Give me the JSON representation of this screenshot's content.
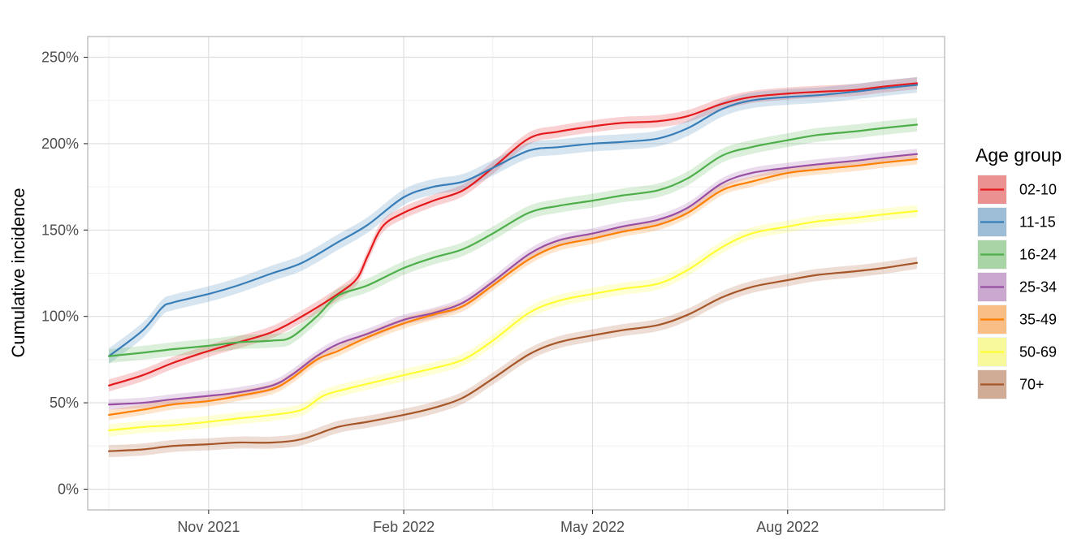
{
  "chart_data": {
    "type": "line",
    "title": "",
    "xlabel": "",
    "ylabel": "Cumulative incidence",
    "x_tick_labels": [
      "Nov 2021",
      "Feb 2022",
      "May 2022",
      "Aug 2022"
    ],
    "x_ticks": [
      "2021-11-01",
      "2022-02-01",
      "2022-05-01",
      "2022-08-01"
    ],
    "x_minor_ticks": [
      "2021-09-15",
      "2021-12-15",
      "2022-03-15",
      "2022-06-15",
      "2022-09-15"
    ],
    "xlim": [
      "2021-09-05",
      "2022-10-14"
    ],
    "y_tick_labels": [
      "0%",
      "50%",
      "100%",
      "150%",
      "200%",
      "250%"
    ],
    "y_ticks": [
      0,
      50,
      100,
      150,
      200,
      250
    ],
    "ylim": [
      -12,
      262
    ],
    "y_unit": "%",
    "grid": true,
    "legend": {
      "title": "Age group",
      "position": "right"
    },
    "band": "shaded interval around each line",
    "series": [
      {
        "name": "02-10",
        "color": "#E41A1C",
        "band_halfwidth": 3.5,
        "points": [
          [
            "2021-09-15",
            60
          ],
          [
            "2021-10-01",
            66
          ],
          [
            "2021-10-15",
            73
          ],
          [
            "2021-11-01",
            80
          ],
          [
            "2021-11-15",
            85
          ],
          [
            "2021-12-01",
            91
          ],
          [
            "2021-12-15",
            100
          ],
          [
            "2022-01-01",
            113
          ],
          [
            "2022-01-10",
            122
          ],
          [
            "2022-01-15",
            135
          ],
          [
            "2022-01-22",
            152
          ],
          [
            "2022-02-01",
            160
          ],
          [
            "2022-02-15",
            167
          ],
          [
            "2022-03-01",
            173
          ],
          [
            "2022-03-15",
            186
          ],
          [
            "2022-04-01",
            203
          ],
          [
            "2022-04-15",
            207
          ],
          [
            "2022-05-01",
            210
          ],
          [
            "2022-05-15",
            212
          ],
          [
            "2022-06-01",
            213
          ],
          [
            "2022-06-15",
            216
          ],
          [
            "2022-07-01",
            223
          ],
          [
            "2022-07-15",
            227
          ],
          [
            "2022-08-01",
            229
          ],
          [
            "2022-08-15",
            230
          ],
          [
            "2022-09-01",
            231
          ],
          [
            "2022-09-15",
            233
          ],
          [
            "2022-10-01",
            235
          ]
        ]
      },
      {
        "name": "11-15",
        "color": "#377EB8",
        "band_halfwidth": 4.5,
        "points": [
          [
            "2021-09-15",
            77
          ],
          [
            "2021-10-01",
            92
          ],
          [
            "2021-10-10",
            105
          ],
          [
            "2021-10-15",
            108
          ],
          [
            "2021-11-01",
            113
          ],
          [
            "2021-11-15",
            118
          ],
          [
            "2021-12-01",
            125
          ],
          [
            "2021-12-15",
            131
          ],
          [
            "2022-01-01",
            143
          ],
          [
            "2022-01-15",
            153
          ],
          [
            "2022-02-01",
            169
          ],
          [
            "2022-02-15",
            175
          ],
          [
            "2022-03-01",
            178
          ],
          [
            "2022-03-15",
            186
          ],
          [
            "2022-04-01",
            196
          ],
          [
            "2022-04-15",
            198
          ],
          [
            "2022-05-01",
            200
          ],
          [
            "2022-05-15",
            201
          ],
          [
            "2022-06-01",
            203
          ],
          [
            "2022-06-15",
            209
          ],
          [
            "2022-07-01",
            220
          ],
          [
            "2022-07-15",
            225
          ],
          [
            "2022-08-01",
            227
          ],
          [
            "2022-08-15",
            228
          ],
          [
            "2022-09-01",
            230
          ],
          [
            "2022-09-15",
            232
          ],
          [
            "2022-10-01",
            234
          ]
        ]
      },
      {
        "name": "16-24",
        "color": "#4DAF4A",
        "band_halfwidth": 4,
        "points": [
          [
            "2021-09-15",
            77
          ],
          [
            "2021-10-01",
            79
          ],
          [
            "2021-10-15",
            81
          ],
          [
            "2021-11-01",
            83
          ],
          [
            "2021-11-15",
            85
          ],
          [
            "2021-12-01",
            86
          ],
          [
            "2021-12-10",
            88
          ],
          [
            "2021-12-22",
            100
          ],
          [
            "2022-01-01",
            112
          ],
          [
            "2022-01-15",
            118
          ],
          [
            "2022-02-01",
            128
          ],
          [
            "2022-02-15",
            134
          ],
          [
            "2022-03-01",
            139
          ],
          [
            "2022-03-15",
            148
          ],
          [
            "2022-04-01",
            160
          ],
          [
            "2022-04-15",
            164
          ],
          [
            "2022-05-01",
            167
          ],
          [
            "2022-05-15",
            170
          ],
          [
            "2022-06-01",
            173
          ],
          [
            "2022-06-15",
            180
          ],
          [
            "2022-07-01",
            193
          ],
          [
            "2022-07-15",
            198
          ],
          [
            "2022-08-01",
            202
          ],
          [
            "2022-08-15",
            205
          ],
          [
            "2022-09-01",
            207
          ],
          [
            "2022-09-15",
            209
          ],
          [
            "2022-10-01",
            211
          ]
        ]
      },
      {
        "name": "25-34",
        "color": "#984EA3",
        "band_halfwidth": 3,
        "points": [
          [
            "2021-09-15",
            49
          ],
          [
            "2021-10-01",
            50
          ],
          [
            "2021-10-15",
            52
          ],
          [
            "2021-11-01",
            54
          ],
          [
            "2021-11-15",
            56
          ],
          [
            "2021-12-01",
            60
          ],
          [
            "2021-12-10",
            66
          ],
          [
            "2021-12-22",
            77
          ],
          [
            "2022-01-01",
            84
          ],
          [
            "2022-01-15",
            90
          ],
          [
            "2022-02-01",
            98
          ],
          [
            "2022-02-15",
            102
          ],
          [
            "2022-03-01",
            108
          ],
          [
            "2022-03-15",
            120
          ],
          [
            "2022-04-01",
            136
          ],
          [
            "2022-04-15",
            144
          ],
          [
            "2022-05-01",
            148
          ],
          [
            "2022-05-15",
            152
          ],
          [
            "2022-06-01",
            156
          ],
          [
            "2022-06-15",
            163
          ],
          [
            "2022-07-01",
            177
          ],
          [
            "2022-07-15",
            183
          ],
          [
            "2022-08-01",
            186
          ],
          [
            "2022-08-15",
            188
          ],
          [
            "2022-09-01",
            190
          ],
          [
            "2022-09-15",
            192
          ],
          [
            "2022-10-01",
            194
          ]
        ]
      },
      {
        "name": "35-49",
        "color": "#FF7F00",
        "band_halfwidth": 3,
        "points": [
          [
            "2021-09-15",
            43
          ],
          [
            "2021-10-01",
            46
          ],
          [
            "2021-10-15",
            49
          ],
          [
            "2021-11-01",
            51
          ],
          [
            "2021-11-15",
            54
          ],
          [
            "2021-12-01",
            58
          ],
          [
            "2021-12-10",
            64
          ],
          [
            "2021-12-22",
            75
          ],
          [
            "2022-01-01",
            80
          ],
          [
            "2022-01-15",
            88
          ],
          [
            "2022-02-01",
            96
          ],
          [
            "2022-02-15",
            101
          ],
          [
            "2022-03-01",
            106
          ],
          [
            "2022-03-15",
            118
          ],
          [
            "2022-04-01",
            133
          ],
          [
            "2022-04-15",
            141
          ],
          [
            "2022-05-01",
            145
          ],
          [
            "2022-05-15",
            149
          ],
          [
            "2022-06-01",
            153
          ],
          [
            "2022-06-15",
            160
          ],
          [
            "2022-07-01",
            173
          ],
          [
            "2022-07-15",
            178
          ],
          [
            "2022-08-01",
            183
          ],
          [
            "2022-08-15",
            185
          ],
          [
            "2022-09-01",
            187
          ],
          [
            "2022-09-15",
            189
          ],
          [
            "2022-10-01",
            191
          ]
        ]
      },
      {
        "name": "50-69",
        "color": "#FFFF33",
        "band_halfwidth": 3.5,
        "points": [
          [
            "2021-09-15",
            34
          ],
          [
            "2021-10-01",
            36
          ],
          [
            "2021-10-15",
            37
          ],
          [
            "2021-11-01",
            39
          ],
          [
            "2021-11-15",
            41
          ],
          [
            "2021-12-01",
            43
          ],
          [
            "2021-12-15",
            46
          ],
          [
            "2021-12-25",
            54
          ],
          [
            "2022-01-05",
            58
          ],
          [
            "2022-01-15",
            61
          ],
          [
            "2022-02-01",
            66
          ],
          [
            "2022-02-15",
            70
          ],
          [
            "2022-03-01",
            75
          ],
          [
            "2022-03-15",
            86
          ],
          [
            "2022-04-01",
            102
          ],
          [
            "2022-04-15",
            109
          ],
          [
            "2022-05-01",
            113
          ],
          [
            "2022-05-15",
            116
          ],
          [
            "2022-06-01",
            119
          ],
          [
            "2022-06-15",
            127
          ],
          [
            "2022-07-01",
            140
          ],
          [
            "2022-07-15",
            148
          ],
          [
            "2022-08-01",
            152
          ],
          [
            "2022-08-15",
            155
          ],
          [
            "2022-09-01",
            157
          ],
          [
            "2022-09-15",
            159
          ],
          [
            "2022-10-01",
            161
          ]
        ]
      },
      {
        "name": "70+",
        "color": "#A65628",
        "band_halfwidth": 3.5,
        "points": [
          [
            "2021-09-15",
            22
          ],
          [
            "2021-10-01",
            23
          ],
          [
            "2021-10-15",
            25
          ],
          [
            "2021-11-01",
            26
          ],
          [
            "2021-11-15",
            27
          ],
          [
            "2021-12-01",
            27
          ],
          [
            "2021-12-15",
            29
          ],
          [
            "2022-01-01",
            36
          ],
          [
            "2022-01-15",
            39
          ],
          [
            "2022-02-01",
            43
          ],
          [
            "2022-02-15",
            47
          ],
          [
            "2022-03-01",
            53
          ],
          [
            "2022-03-15",
            64
          ],
          [
            "2022-04-01",
            78
          ],
          [
            "2022-04-15",
            85
          ],
          [
            "2022-05-01",
            89
          ],
          [
            "2022-05-15",
            92
          ],
          [
            "2022-06-01",
            95
          ],
          [
            "2022-06-15",
            101
          ],
          [
            "2022-07-01",
            111
          ],
          [
            "2022-07-15",
            117
          ],
          [
            "2022-08-01",
            121
          ],
          [
            "2022-08-15",
            124
          ],
          [
            "2022-09-01",
            126
          ],
          [
            "2022-09-15",
            128
          ],
          [
            "2022-10-01",
            131
          ]
        ]
      }
    ]
  }
}
